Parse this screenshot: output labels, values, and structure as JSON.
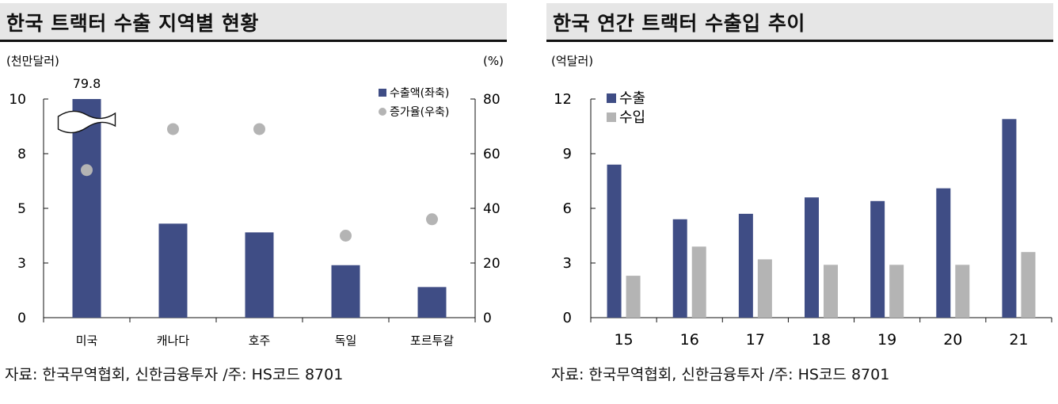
{
  "left": {
    "title": "한국 트랙터 수출 지역별 현황",
    "source": "자료: 한국무역협회, 신한금융투자 /주: HS코드 8701",
    "chart_data": {
      "type": "bar",
      "categories": [
        "미국",
        "캐나다",
        "호주",
        "독일",
        "포르투갈"
      ],
      "left_unit": "(천만달러)",
      "right_unit": "(%)",
      "left_ticks": [
        "0",
        "3",
        "5",
        "8",
        "10"
      ],
      "right_ticks": [
        "0",
        "20",
        "40",
        "60",
        "80"
      ],
      "ylim_left": [
        0,
        10
      ],
      "ylim_right": [
        0,
        80
      ],
      "series": [
        {
          "name": "수출액(좌축)",
          "type": "bar",
          "axis": "left",
          "color": "#3f4d85",
          "values": [
            79.8,
            4.3,
            3.9,
            2.4,
            1.4
          ]
        },
        {
          "name": "증가율(우축)",
          "type": "scatter",
          "axis": "right",
          "color": "#b4b4b4",
          "values": [
            54,
            69,
            69,
            30,
            36
          ]
        }
      ],
      "data_labels": [
        {
          "category": "미국",
          "text": "79.8"
        }
      ],
      "axis_break": "미국",
      "legend_position": "top-right"
    }
  },
  "right": {
    "title": "한국 연간 트랙터 수출입 추이",
    "source": "자료: 한국무역협회, 신한금융투자 /주: HS코드 8701",
    "chart_data": {
      "type": "bar",
      "categories": [
        "15",
        "16",
        "17",
        "18",
        "19",
        "20",
        "21"
      ],
      "y_unit": "(억달러)",
      "y_ticks": [
        "0",
        "3",
        "6",
        "9",
        "12"
      ],
      "ylim": [
        0,
        12
      ],
      "series": [
        {
          "name": "수출",
          "color": "#3f4d85",
          "values": [
            8.4,
            5.4,
            5.7,
            6.6,
            6.4,
            7.1,
            10.9
          ]
        },
        {
          "name": "수입",
          "color": "#b4b4b4",
          "values": [
            2.3,
            3.9,
            3.2,
            2.9,
            2.9,
            2.9,
            3.6
          ]
        }
      ],
      "legend_position": "top-left"
    }
  }
}
